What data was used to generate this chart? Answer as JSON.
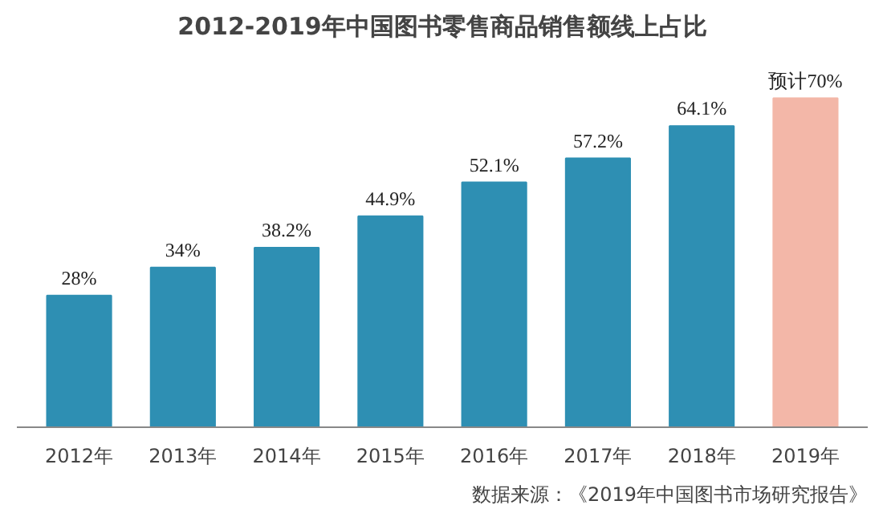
{
  "chart_data": {
    "type": "bar",
    "title": "2012-2019年中国图书零售商品销售额线上占比",
    "categories": [
      "2012年",
      "2013年",
      "2014年",
      "2015年",
      "2016年",
      "2017年",
      "2018年",
      "2019年"
    ],
    "values": [
      28,
      34,
      38.2,
      44.9,
      52.1,
      57.2,
      64.1,
      70
    ],
    "value_labels": [
      "28%",
      "34%",
      "38.2%",
      "44.9%",
      "52.1%",
      "57.2%",
      "64.1%",
      "预计70%"
    ],
    "colors": [
      "#2e8fb3",
      "#2e8fb3",
      "#2e8fb3",
      "#2e8fb3",
      "#2e8fb3",
      "#2e8fb3",
      "#2e8fb3",
      "#f3b7a8"
    ],
    "annotations": [
      "数据来源：《2019年中国图书市场研究报告》"
    ]
  }
}
